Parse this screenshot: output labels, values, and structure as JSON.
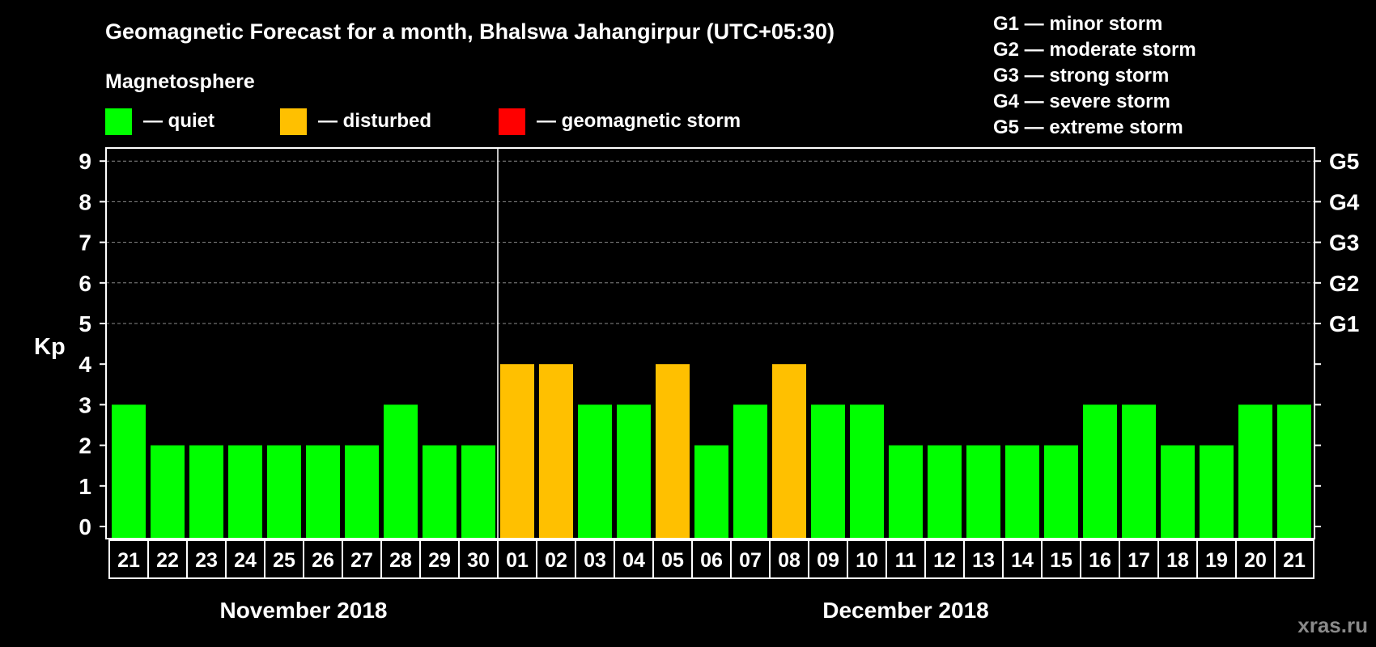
{
  "chart_data": {
    "type": "bar",
    "title": "Geomagnetic Forecast for a month, Bhalswa Jahangirpur (UTC+05:30)",
    "legend_title": "Magnetosphere",
    "legend": [
      {
        "label": "— quiet",
        "color": "#00ff00"
      },
      {
        "label": "— disturbed",
        "color": "#ffc000"
      },
      {
        "label": "— geomagnetic storm",
        "color": "#ff0000"
      }
    ],
    "storm_scale": [
      "G1 — minor storm",
      "G2 — moderate storm",
      "G3 — strong storm",
      "G4 — severe storm",
      "G5 — extreme storm"
    ],
    "ylabel": "Kp",
    "ylim": [
      0,
      9
    ],
    "yticks": [
      "0",
      "1",
      "2",
      "3",
      "4",
      "5",
      "6",
      "7",
      "8",
      "9"
    ],
    "right_ticks": [
      {
        "kp": 5,
        "label": "G1"
      },
      {
        "kp": 6,
        "label": "G2"
      },
      {
        "kp": 7,
        "label": "G3"
      },
      {
        "kp": 8,
        "label": "G4"
      },
      {
        "kp": 9,
        "label": "G5"
      }
    ],
    "categories": [
      "21",
      "22",
      "23",
      "24",
      "25",
      "26",
      "27",
      "28",
      "29",
      "30",
      "01",
      "02",
      "03",
      "04",
      "05",
      "06",
      "07",
      "08",
      "09",
      "10",
      "11",
      "12",
      "13",
      "14",
      "15",
      "16",
      "17",
      "18",
      "19",
      "20",
      "21"
    ],
    "values": [
      3,
      2,
      2,
      2,
      2,
      2,
      2,
      3,
      2,
      2,
      4,
      4,
      3,
      3,
      4,
      2,
      3,
      4,
      3,
      3,
      2,
      2,
      2,
      2,
      2,
      3,
      3,
      2,
      2,
      3,
      3
    ],
    "status": [
      "quiet",
      "quiet",
      "quiet",
      "quiet",
      "quiet",
      "quiet",
      "quiet",
      "quiet",
      "quiet",
      "quiet",
      "disturbed",
      "disturbed",
      "quiet",
      "quiet",
      "disturbed",
      "quiet",
      "quiet",
      "disturbed",
      "quiet",
      "quiet",
      "quiet",
      "quiet",
      "quiet",
      "quiet",
      "quiet",
      "quiet",
      "quiet",
      "quiet",
      "quiet",
      "quiet",
      "quiet"
    ],
    "colors": {
      "quiet": "#00ff00",
      "disturbed": "#ffc000",
      "storm": "#ff0000"
    },
    "months": [
      {
        "label": "November 2018",
        "from": 0,
        "to": 9
      },
      {
        "label": "December 2018",
        "from": 10,
        "to": 30
      }
    ]
  },
  "watermark": "xras.ru"
}
